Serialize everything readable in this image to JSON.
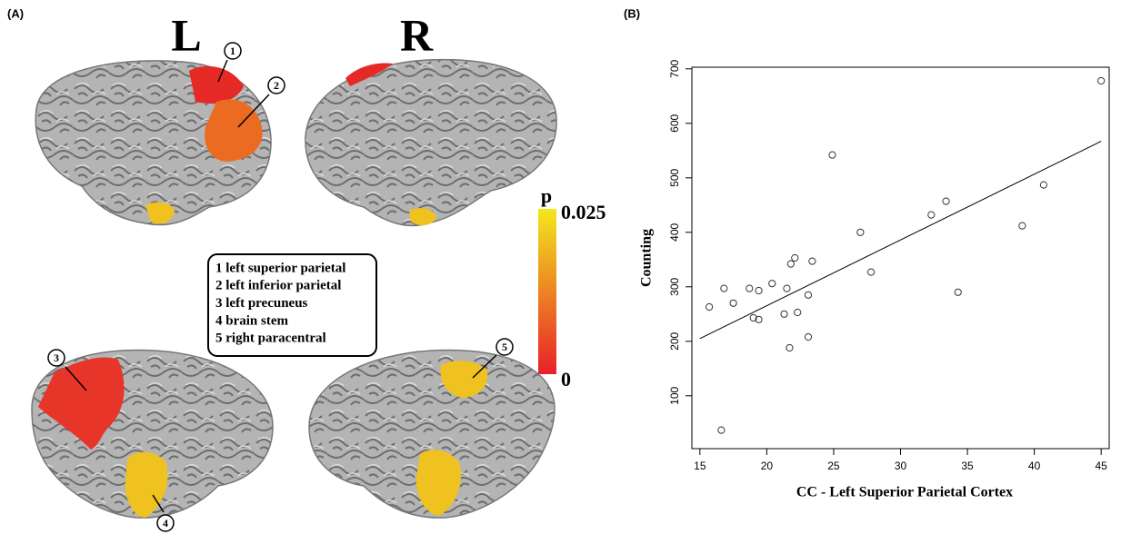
{
  "panel_a": {
    "label": "(A)",
    "hemispheres": [
      "L",
      "R"
    ],
    "callouts": [
      "1",
      "2",
      "3",
      "4",
      "5"
    ],
    "legend": [
      "1 left superior parietal",
      "2 left inferior parietal",
      "3 left precuneus",
      "4 brain stem",
      "5 right paracentral"
    ],
    "colorbar": {
      "title": "p",
      "ticks": [
        0,
        0.025
      ],
      "colors": [
        "#e8202a",
        "#f2e81c"
      ]
    }
  },
  "chart_data": {
    "type": "scatter",
    "panel_label": "(B)",
    "xlabel": "CC - Left Superior Parietal Cortex",
    "ylabel": "Counting",
    "x": [
      45,
      24.9,
      33.4,
      32.3,
      40.7,
      39.1,
      27,
      22.1,
      21.8,
      23.4,
      27.8,
      20.4,
      18.7,
      16.8,
      21.5,
      19.4,
      34.3,
      23.1,
      17.5,
      15.7,
      21.3,
      22.3,
      19,
      19.4,
      23.1,
      21.7,
      16.6
    ],
    "values": [
      678,
      542,
      457,
      432,
      487,
      412,
      400,
      353,
      342,
      347,
      327,
      306,
      297,
      297,
      297,
      293,
      290,
      285,
      270,
      263,
      250,
      253,
      243,
      240,
      208,
      188,
      37
    ],
    "trend": {
      "x": [
        15,
        45
      ],
      "y": [
        205,
        567
      ]
    },
    "xlim": [
      14.4,
      45.6
    ],
    "ylim": [
      3,
      703
    ],
    "xticks": [
      15,
      20,
      25,
      30,
      35,
      40,
      45
    ],
    "yticks": [
      100,
      200,
      300,
      400,
      500,
      600,
      700
    ],
    "color": "#333333"
  }
}
